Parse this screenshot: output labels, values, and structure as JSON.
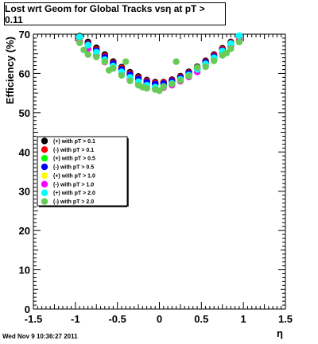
{
  "chart_data": {
    "type": "scatter",
    "title": "Lost wrt Geom for Global Tracks vsη at pT > 0.11",
    "xlabel": "η",
    "ylabel": "Efficiency (%)",
    "xlim": [
      -1.5,
      1.5
    ],
    "ylim": [
      0,
      70
    ],
    "x_ticks": [
      "-1.5",
      "-1",
      "-0.5",
      "0",
      "0.5",
      "1",
      "1.5"
    ],
    "y_ticks": [
      "0",
      "10",
      "20",
      "30",
      "40",
      "50",
      "60",
      "70"
    ],
    "grid": false,
    "legend_position": "left-middle",
    "series": [
      {
        "name": "(+) with pT > 0.1",
        "color": "#000000",
        "x": [
          -0.95,
          -0.85,
          -0.75,
          -0.65,
          -0.55,
          -0.45,
          -0.35,
          -0.25,
          -0.15,
          -0.05,
          0.05,
          0.15,
          0.25,
          0.35,
          0.45,
          0.55,
          0.65,
          0.75,
          0.85,
          0.95
        ],
        "y": [
          69.5,
          68,
          66.5,
          64.8,
          63,
          61.6,
          60.3,
          59.2,
          58.3,
          57.8,
          57.8,
          58.4,
          59.3,
          60.4,
          61.7,
          63.2,
          64.8,
          66.4,
          68,
          69.5
        ]
      },
      {
        "name": "(-) with pT > 0.1",
        "color": "#ff0000",
        "x": [
          -0.95,
          -0.85,
          -0.75,
          -0.65,
          -0.55,
          -0.45,
          -0.35,
          -0.25,
          -0.15,
          -0.05,
          0.05,
          0.15,
          0.25,
          0.35,
          0.45,
          0.55,
          0.65,
          0.75,
          0.85,
          0.95
        ],
        "y": [
          69.2,
          67.6,
          66.1,
          64.4,
          62.7,
          61.3,
          60,
          58.9,
          58.1,
          57.6,
          57.7,
          58.2,
          59.1,
          60.2,
          61.5,
          63,
          64.6,
          66.2,
          67.8,
          69.2
        ]
      },
      {
        "name": "(+) with pT > 0.5",
        "color": "#00ff00",
        "x": [
          -0.95,
          -0.85,
          -0.75,
          -0.65,
          -0.55,
          -0.45,
          -0.35,
          -0.25,
          -0.15,
          -0.05,
          0.05,
          0.15,
          0.25,
          0.35,
          0.45,
          0.55,
          0.65,
          0.75,
          0.85,
          0.95
        ],
        "y": [
          68.8,
          67.2,
          65.5,
          63.8,
          62.2,
          60.8,
          59.4,
          58.4,
          57.6,
          57.1,
          57.2,
          57.8,
          58.7,
          59.8,
          61.1,
          62.6,
          64.1,
          65.7,
          67.3,
          69
        ]
      },
      {
        "name": "(-) with pT > 0.5",
        "color": "#0000ff",
        "x": [
          -0.95,
          -0.85,
          -0.75,
          -0.65,
          -0.55,
          -0.45,
          -0.35,
          -0.25,
          -0.15,
          -0.05,
          0.05,
          0.15,
          0.25,
          0.35,
          0.45,
          0.55,
          0.65,
          0.75,
          0.85,
          0.95
        ],
        "y": [
          69,
          67.4,
          65.8,
          64.1,
          62.5,
          61,
          59.7,
          58.6,
          57.8,
          57.3,
          57.4,
          58,
          58.9,
          60,
          61.3,
          62.8,
          64.3,
          65.9,
          67.6,
          69.1
        ]
      },
      {
        "name": "(+) with pT > 1.0",
        "color": "#ffff00",
        "x": [
          -0.95,
          -0.85,
          -0.75,
          -0.65,
          -0.55,
          -0.45,
          -0.35,
          -0.25,
          -0.15,
          -0.05,
          0.05,
          0.15,
          0.25,
          0.35,
          0.45,
          0.55,
          0.65,
          0.75,
          0.85,
          0.95
        ],
        "y": [
          68.4,
          66.6,
          64.9,
          63.2,
          61.6,
          60.2,
          58.8,
          57.7,
          56.9,
          56.4,
          56.6,
          57.2,
          58.2,
          59.3,
          60.6,
          62.1,
          63.7,
          65.3,
          67,
          68.7
        ]
      },
      {
        "name": "(-) with pT > 1.0",
        "color": "#ff00ff",
        "x": [
          -0.95,
          -0.85,
          -0.75,
          -0.65,
          -0.55,
          -0.45,
          -0.35,
          -0.25,
          -0.15,
          -0.05,
          0.05,
          0.15,
          0.25,
          0.35,
          0.45,
          0.55,
          0.65,
          0.75,
          0.85,
          0.95
        ],
        "y": [
          68.1,
          66.3,
          64.6,
          62.9,
          61.3,
          59.9,
          58.5,
          57.4,
          56.6,
          56.2,
          56.4,
          57,
          58,
          59.1,
          60.4,
          61.9,
          63.5,
          65.1,
          66.8,
          68.4
        ]
      },
      {
        "name": "(+) with pT > 2.0",
        "color": "#00ffff",
        "x": [
          -0.95,
          -0.85,
          -0.75,
          -0.65,
          -0.55,
          -0.45,
          -0.35,
          -0.25,
          -0.15,
          -0.05,
          0.05,
          0.15,
          0.25,
          0.35,
          0.45,
          0.55,
          0.65,
          0.75,
          0.85,
          0.95
        ],
        "y": [
          69.3,
          67.2,
          65.4,
          63.5,
          61.9,
          60.4,
          59,
          57.9,
          57,
          56.5,
          56.7,
          57.5,
          58.5,
          59.6,
          61,
          62.4,
          64,
          65.7,
          67.6,
          69.6
        ]
      },
      {
        "name": "(-) with pT > 2.0",
        "color": "#66cc55",
        "x": [
          -0.95,
          -0.9,
          -0.85,
          -0.75,
          -0.65,
          -0.6,
          -0.55,
          -0.45,
          -0.4,
          -0.35,
          -0.25,
          -0.2,
          -0.15,
          -0.05,
          0,
          0.05,
          0.15,
          0.2,
          0.25,
          0.35,
          0.45,
          0.55,
          0.65,
          0.75,
          0.8,
          0.85,
          0.95
        ],
        "y": [
          67.8,
          66,
          64.8,
          64.2,
          63,
          60.8,
          61.3,
          59.5,
          63,
          58.1,
          57,
          56.5,
          56.2,
          55.9,
          55.6,
          56.6,
          57.3,
          63,
          58.2,
          59.3,
          61.5,
          61.7,
          63.2,
          64.6,
          65.2,
          66.3,
          68
        ]
      }
    ]
  },
  "footer": {
    "timestamp": "Wed Nov  9 10:36:27 2011"
  }
}
